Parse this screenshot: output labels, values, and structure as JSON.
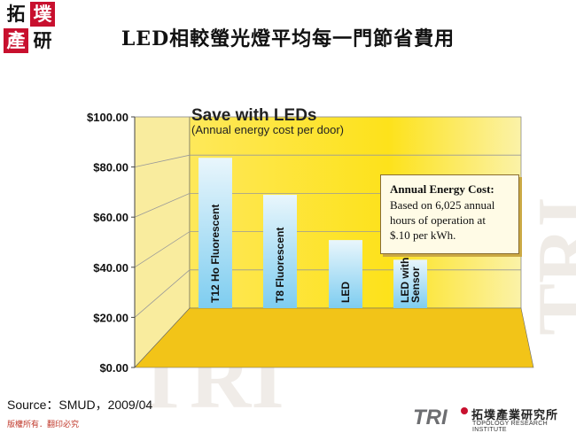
{
  "slide_title": "LED相較螢光燈平均每一門節省費用",
  "logo": {
    "chars": [
      "拓",
      "墣",
      "產",
      "研"
    ]
  },
  "watermark": {
    "text": "TRI"
  },
  "chart_data": {
    "type": "bar",
    "title": "Save with LEDs",
    "subtitle": "(Annual energy cost per door)",
    "categories": [
      "T12 Ho Fluorescent",
      "T8 Fluorescent",
      "LED",
      "LED with Sensor"
    ],
    "category_lines": [
      [
        "T12 Ho Fluorescent"
      ],
      [
        "T8 Fluorescent"
      ],
      [
        "LED"
      ],
      [
        "LED with",
        "Sensor"
      ]
    ],
    "values": [
      78.6,
      59.3,
      35.6,
      25.3
    ],
    "ylim": [
      0,
      100
    ],
    "yticks": [
      0,
      20,
      40,
      60,
      80,
      100
    ],
    "ytick_labels": [
      "$0.00",
      "$20.00",
      "$40.00",
      "$60.00",
      "$80.00",
      "$100.00"
    ],
    "xlabel": "",
    "ylabel": "",
    "grid": true,
    "colors": {
      "back": "#fde21b",
      "side": "#f9ec9e",
      "floor": "#f2c418",
      "bar_top": "#e9f6fc",
      "bar_bottom": "#7ecdf0"
    }
  },
  "note": {
    "title": "Annual Energy Cost:",
    "lines": [
      "Based on 6,025 annual",
      "hours of operation at",
      "$.10 per kWh."
    ]
  },
  "source": "Source：SMUD，2009/04",
  "copyright": "版權所有．翻印必究",
  "org": {
    "tri": "TRI",
    "name_cn": "拓墣產業研究所",
    "name_en": "TOPOLOGY RESEARCH INSTITUTE"
  }
}
